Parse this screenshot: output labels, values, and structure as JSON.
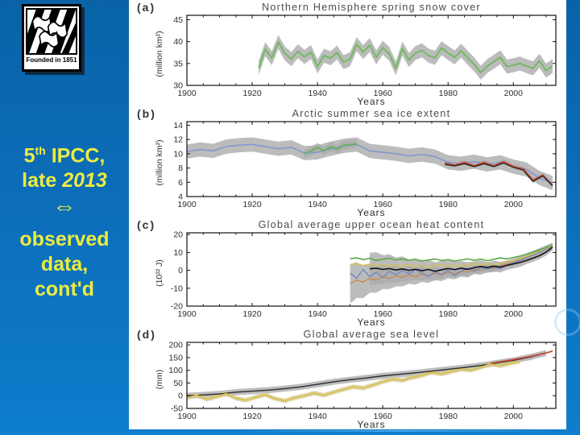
{
  "slide": {
    "colors": {
      "background_blue_top": "#0a63a7",
      "background_blue_bottom": "#0e7ecd",
      "headline_yellow": "#EDEC3F",
      "panel_white": "#ffffff",
      "band_gray": "#ababab"
    },
    "logo": {
      "caption": "Founded in 1851"
    },
    "headline": {
      "l1a": "5",
      "l1b": "th",
      "l1c": " IPCC,",
      "l2a": "late ",
      "l2b": "2013",
      "arrow": "⇔",
      "l3": "observed",
      "l4": "data,",
      "l5": "cont'd"
    }
  },
  "chart_data": [
    {
      "id": "a",
      "type": "line",
      "panel_label": "(a)",
      "title": "Northern Hemisphere spring snow cover",
      "ylabel": "(million km²)",
      "xlabel": "Years",
      "xlim": [
        1900,
        2013
      ],
      "ylim": [
        30,
        46
      ],
      "xticks": [
        1900,
        1920,
        1940,
        1960,
        1980,
        2000
      ],
      "yticks": [
        30,
        35,
        40,
        45
      ],
      "band_color": "#ababab",
      "series": [
        {
          "name": "spring snow cover",
          "color": "#72b961",
          "width": 2,
          "band": 1.6,
          "x_start": 1922,
          "x_step": 2,
          "y": [
            34.0,
            38.3,
            36.2,
            39.9,
            37.3,
            36.0,
            37.8,
            36.5,
            37.6,
            34.3,
            36.8,
            36.2,
            37.5,
            35.3,
            36.0,
            39.4,
            37.6,
            39.2,
            36.4,
            38.6,
            37.2,
            33.9,
            38.4,
            35.8,
            37.4,
            38.0,
            36.8,
            36.3,
            38.5,
            37.4,
            36.4,
            37.9,
            36.3,
            34.8,
            32.9,
            34.4,
            35.4,
            36.4,
            34.3,
            34.6,
            35.0,
            34.4,
            33.9,
            35.6,
            33.4,
            34.4
          ]
        }
      ]
    },
    {
      "id": "b",
      "type": "line",
      "panel_label": "(b)",
      "title": "Arctic summer sea ice extent",
      "ylabel": "(million km²)",
      "xlabel": "Years",
      "xlim": [
        1900,
        2013
      ],
      "ylim": [
        4,
        14.5
      ],
      "xticks": [
        1900,
        1920,
        1940,
        1960,
        1980,
        2000
      ],
      "yticks": [
        4,
        6,
        8,
        10,
        12,
        14
      ],
      "band_color": "#ababab",
      "series": [
        {
          "name": "reconstruction blue",
          "color": "#8099cc",
          "width": 1.6,
          "band": 1.0,
          "x_start": 1900,
          "x_step": 4,
          "y": [
            10.3,
            10.6,
            10.4,
            11.0,
            11.2,
            11.3,
            11.0,
            10.7,
            10.9,
            10.1,
            10.2,
            10.7,
            11.1,
            11.3,
            10.4,
            10.2,
            10.0,
            9.7,
            9.9,
            9.6,
            8.8,
            8.6,
            8.9,
            8.5,
            8.8,
            8.2,
            7.8,
            6.6,
            5.9
          ]
        },
        {
          "name": "reconstruction green",
          "color": "#62b554",
          "width": 1.8,
          "band": 0.6,
          "x_start": 1936,
          "x_step": 2,
          "y": [
            10.0,
            10.4,
            10.9,
            10.4,
            11.0,
            10.6,
            11.2,
            11.3,
            11.4
          ]
        },
        {
          "name": "satellite red",
          "color": "#c8432c",
          "width": 1.7,
          "band": 0.35,
          "x_start": 1979,
          "x_step": 3,
          "y": [
            8.7,
            8.4,
            8.8,
            8.3,
            8.8,
            8.3,
            8.9,
            8.2,
            7.9,
            6.3,
            7.0,
            5.6
          ]
        },
        {
          "name": "satellite black",
          "color": "#1c1c1c",
          "width": 1.2,
          "x_start": 1979,
          "x_step": 3,
          "y": [
            8.5,
            8.3,
            8.6,
            8.2,
            8.6,
            8.2,
            8.7,
            8.1,
            7.7,
            6.1,
            6.9,
            5.5
          ]
        }
      ]
    },
    {
      "id": "c",
      "type": "line",
      "panel_label": "(c)",
      "title": "Global average upper ocean heat content",
      "ylabel": "(10²² J)",
      "xlabel": "Years",
      "xlim": [
        1900,
        2013
      ],
      "ylim": [
        -20,
        21
      ],
      "xticks": [
        1900,
        1920,
        1940,
        1960,
        1980,
        2000
      ],
      "yticks": [
        -20,
        -10,
        0,
        10,
        20
      ],
      "band_color": "#ababab",
      "series": [
        {
          "name": "dataset orange",
          "color": "#cc8952",
          "width": 1.4,
          "band": [
            11,
            10,
            9,
            8,
            7,
            7,
            6,
            6,
            5,
            5,
            4.5,
            4.5,
            4,
            4,
            3.5,
            3.5,
            3,
            3,
            3,
            2.5,
            2.5,
            2.5,
            2,
            2,
            2,
            2,
            2,
            2,
            2,
            2,
            2,
            2
          ],
          "x_start": 1950,
          "x_step": 2,
          "y": [
            -7.5,
            -5.5,
            -6.5,
            -4.5,
            -5.5,
            -3.5,
            -4.5,
            -3.0,
            -4.0,
            -2.5,
            -3.5,
            -2.0,
            -3.0,
            -1.5,
            -2.5,
            -1.0,
            -2.0,
            -0.5,
            -1.0,
            0.5,
            0.0,
            1.5,
            1.0,
            2.5,
            3.5,
            4.5,
            6.0,
            7.5,
            9.0,
            10.5,
            12.0,
            13.5
          ]
        },
        {
          "name": "dataset blue",
          "color": "#7289c4",
          "width": 1.4,
          "x_start": 1950,
          "x_step": 2,
          "y": [
            -1.5,
            -4.5,
            0.5,
            -3.5,
            -1.0,
            -4.0,
            -0.5,
            -2.5,
            0.0,
            -2.0,
            0.5,
            -1.5,
            -3.5,
            -0.5,
            -2.5,
            0.0,
            -3.0,
            -0.5,
            1.0,
            -0.5,
            1.5,
            0.5,
            2.0,
            1.0,
            3.0,
            4.2,
            5.5,
            7.0,
            8.5,
            10.2,
            12.0,
            13.5
          ]
        },
        {
          "name": "dataset yellow",
          "color": "#d3c050",
          "width": 1.4,
          "x_start": 1950,
          "x_step": 2,
          "y": [
            3.0,
            3.8,
            2.8,
            3.5,
            2.5,
            3.2,
            2.2,
            3.0,
            2.4,
            3.2,
            2.2,
            2.8,
            1.8,
            2.6,
            3.2,
            2.4,
            3.0,
            2.2,
            3.0,
            3.8,
            3.0,
            3.8,
            3.0,
            4.0,
            4.8,
            5.6,
            6.6,
            7.8,
            9.2,
            10.8,
            12.4,
            13.8
          ]
        },
        {
          "name": "dataset green",
          "color": "#58a948",
          "width": 1.6,
          "x_start": 1950,
          "x_step": 2,
          "y": [
            6.5,
            7.0,
            6.0,
            6.8,
            5.5,
            6.2,
            6.8,
            5.8,
            6.4,
            5.6,
            6.2,
            5.3,
            5.8,
            6.4,
            5.5,
            6.0,
            5.2,
            5.8,
            6.4,
            5.6,
            6.3,
            5.4,
            6.2,
            7.0,
            6.4,
            7.2,
            8.0,
            9.0,
            10.2,
            11.4,
            12.8,
            14.2
          ]
        },
        {
          "name": "dataset black",
          "color": "#111111",
          "width": 1.6,
          "band": [
            9,
            9,
            8,
            8,
            7,
            7,
            6,
            6,
            5.5,
            5.5,
            5,
            5,
            4.5,
            4.5,
            4,
            4,
            3.5,
            3.5,
            3,
            3,
            3,
            2.5,
            2.5,
            2.5,
            2,
            2,
            2,
            2,
            2
          ],
          "x_start": 1956,
          "x_step": 2,
          "y": [
            0.8,
            1.2,
            0.5,
            1.0,
            0.2,
            0.8,
            0.0,
            0.6,
            -0.2,
            0.5,
            -0.5,
            0.3,
            1.0,
            0.4,
            1.2,
            0.6,
            1.5,
            2.2,
            1.6,
            2.4,
            1.8,
            2.8,
            3.6,
            4.4,
            5.5,
            6.8,
            8.2,
            10.2,
            13.0
          ]
        }
      ]
    },
    {
      "id": "d",
      "type": "line",
      "panel_label": "(d)",
      "title": "Global average sea level",
      "ylabel": "(mm)",
      "xlabel": "Years",
      "xlim": [
        1900,
        2013
      ],
      "ylim": [
        -50,
        210
      ],
      "xticks": [
        1900,
        1920,
        1940,
        1960,
        1980,
        2000
      ],
      "yticks": [
        -50,
        0,
        50,
        100,
        150,
        200
      ],
      "band_color": "#ababab",
      "series": [
        {
          "name": "tide gauge black",
          "color": "#2b2b2b",
          "width": 1.4,
          "band": 12,
          "x_start": 1900,
          "x_step": 5,
          "y": [
            0,
            3,
            7,
            14,
            18,
            22,
            28,
            35,
            45,
            55,
            63,
            70,
            78,
            84,
            90,
            97,
            104,
            111,
            119,
            129,
            139,
            152,
            168
          ]
        },
        {
          "name": "tide gauge yellow",
          "color": "#d4c253",
          "width": 1.8,
          "band": 9,
          "band_color": "#d8cc96",
          "x_start": 1900,
          "x_step": 3,
          "y": [
            -8,
            2,
            -14,
            -4,
            8,
            -10,
            -18,
            -6,
            4,
            -12,
            -20,
            -8,
            0,
            10,
            2,
            14,
            25,
            35,
            30,
            42,
            55,
            65,
            60,
            72,
            80,
            92,
            85,
            95,
            105,
            100,
            112,
            125,
            118,
            128,
            135
          ]
        },
        {
          "name": "altimetry red",
          "color": "#bf4b38",
          "width": 1.8,
          "x": [
            1993,
            1996,
            1999,
            2002,
            2005,
            2008,
            2011,
            2012
          ],
          "y": [
            128,
            134,
            140,
            147,
            154,
            162,
            172,
            176
          ]
        }
      ]
    }
  ]
}
